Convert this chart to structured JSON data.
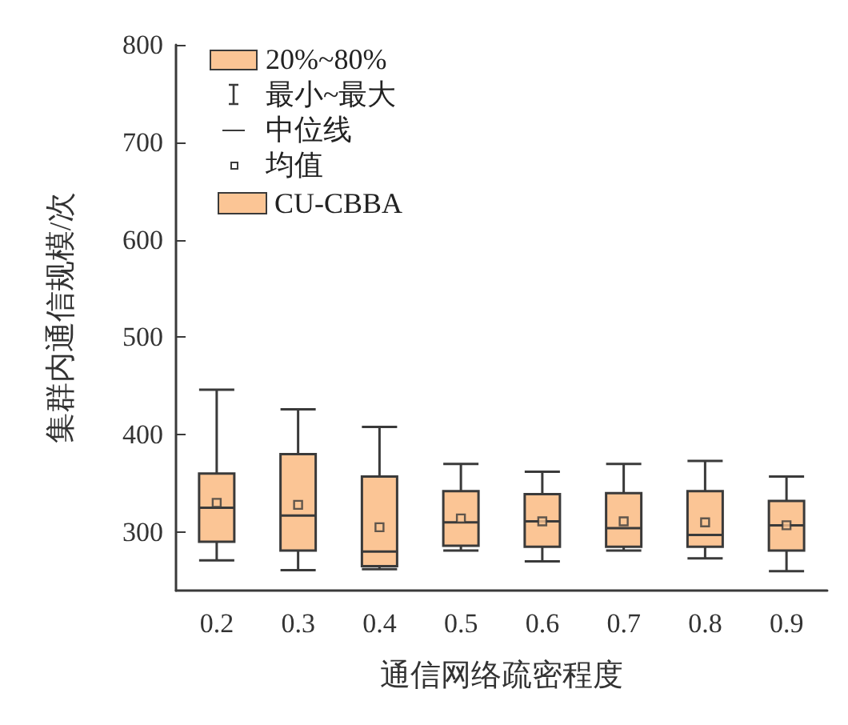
{
  "chart_data": {
    "type": "box",
    "xlabel": "通信网络疏密程度",
    "ylabel": "集群内通信规模/次",
    "categories": [
      "0.2",
      "0.3",
      "0.4",
      "0.5",
      "0.6",
      "0.7",
      "0.8",
      "0.9"
    ],
    "ylim": [
      240,
      800
    ],
    "yticks": [
      300,
      400,
      500,
      600,
      700,
      800
    ],
    "grid": false,
    "legend": "top left",
    "annotations": [
      "20%~80%",
      "最小~最大",
      "中位线",
      "均值"
    ],
    "series": [
      {
        "name": "CU-CBBA",
        "color": "#fbc595",
        "boxes": [
          {
            "low": 271,
            "q1": 290,
            "median": 325,
            "q3": 360,
            "high": 446,
            "mean": 330
          },
          {
            "low": 261,
            "q1": 281,
            "median": 317,
            "q3": 380,
            "high": 426,
            "mean": 328
          },
          {
            "low": 262,
            "q1": 265,
            "median": 280,
            "q3": 357,
            "high": 408,
            "mean": 305
          },
          {
            "low": 281,
            "q1": 286,
            "median": 310,
            "q3": 342,
            "high": 370,
            "mean": 314
          },
          {
            "low": 270,
            "q1": 285,
            "median": 311,
            "q3": 339,
            "high": 362,
            "mean": 311
          },
          {
            "low": 281,
            "q1": 285,
            "median": 304,
            "q3": 340,
            "high": 370,
            "mean": 311
          },
          {
            "low": 273,
            "q1": 285,
            "median": 297,
            "q3": 342,
            "high": 373,
            "mean": 310
          },
          {
            "low": 260,
            "q1": 281,
            "median": 307,
            "q3": 332,
            "high": 357,
            "mean": 307
          }
        ]
      }
    ]
  }
}
